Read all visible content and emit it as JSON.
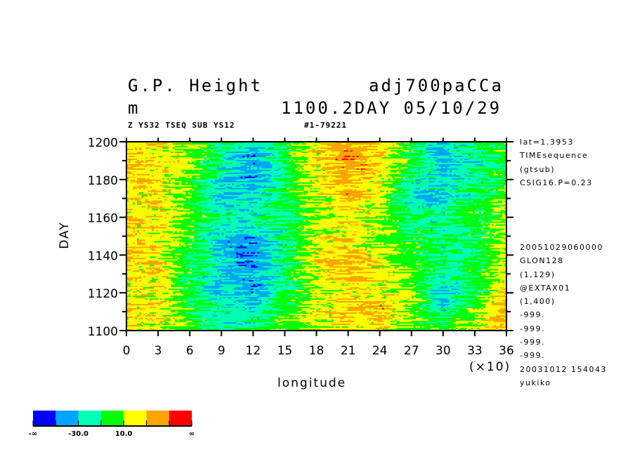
{
  "header": {
    "title_left": "G.P. Height",
    "title_right": "adj700paCCa",
    "unit": "m",
    "time_label": "1100.2DAY 05/10/29",
    "subtitle_left": "Z YS32 TSEQ SUB YS12",
    "subtitle_right": "#1-79221"
  },
  "side_info": {
    "top": [
      "lat=1.3953",
      "TIMEsequence",
      "(gtsub)",
      "CSIG16.P=0.23"
    ],
    "bottom": [
      "20051029060000",
      "GLON128",
      "(1,129)",
      "@EXTAX01",
      "(1,400)",
      "-999.",
      "-999.",
      "-999.",
      "-999.",
      "20031012 154043",
      "yukiko"
    ]
  },
  "chart_data": {
    "type": "heatmap",
    "title": "G.P. Height",
    "xlabel": "longitude",
    "xlabel_multiplier": "(×10)",
    "ylabel": "DAY",
    "xlim": [
      0,
      36
    ],
    "ylim": [
      1100,
      1200
    ],
    "xticks": [
      "0",
      "3",
      "6",
      "9",
      "12",
      "15",
      "18",
      "21",
      "24",
      "27",
      "30",
      "33",
      "36"
    ],
    "yticks": [
      "1100",
      "1120",
      "1140",
      "1160",
      "1180",
      "1200"
    ],
    "grid_x_lon_x10": [
      0,
      3,
      6,
      9,
      12,
      15,
      18,
      21,
      24,
      27,
      30,
      33,
      36
    ],
    "grid_y_day": [
      1200,
      1190,
      1180,
      1170,
      1160,
      1150,
      1140,
      1130,
      1120,
      1110,
      1100
    ],
    "approx_values": [
      [
        25,
        20,
        10,
        -10,
        -30,
        -10,
        20,
        35,
        30,
        0,
        -30,
        -10,
        0
      ],
      [
        30,
        25,
        10,
        -20,
        -40,
        -5,
        25,
        40,
        30,
        -10,
        -35,
        -20,
        -5
      ],
      [
        25,
        20,
        5,
        -25,
        -35,
        -10,
        20,
        35,
        25,
        -15,
        -25,
        -15,
        0
      ],
      [
        20,
        25,
        0,
        -30,
        -25,
        -5,
        15,
        30,
        20,
        -25,
        -30,
        -10,
        5
      ],
      [
        30,
        25,
        5,
        -15,
        -20,
        -10,
        10,
        25,
        10,
        -10,
        -15,
        -5,
        10
      ],
      [
        25,
        20,
        0,
        -30,
        -40,
        -15,
        15,
        25,
        10,
        -5,
        -10,
        -10,
        10
      ],
      [
        30,
        25,
        -5,
        -35,
        -45,
        -15,
        25,
        35,
        15,
        0,
        -15,
        -10,
        15
      ],
      [
        25,
        25,
        -5,
        -25,
        -35,
        -10,
        20,
        35,
        25,
        5,
        -15,
        -5,
        20
      ],
      [
        20,
        20,
        -10,
        -30,
        -40,
        -15,
        10,
        25,
        20,
        10,
        -35,
        -10,
        25
      ],
      [
        30,
        25,
        0,
        -20,
        -25,
        0,
        20,
        30,
        35,
        10,
        -20,
        10,
        35
      ],
      [
        25,
        15,
        0,
        -15,
        -10,
        5,
        15,
        25,
        20,
        10,
        0,
        15,
        30
      ]
    ],
    "levels": [
      -50,
      -30,
      -10,
      10,
      30,
      50
    ],
    "colors": [
      "#0000ff",
      "#00a5ff",
      "#00ffb4",
      "#00ff00",
      "#ffff00",
      "#ffa500",
      "#ff0000"
    ],
    "colorbar": {
      "labels": [
        "-∞",
        "-30.0",
        "10.0",
        "∞"
      ]
    }
  }
}
